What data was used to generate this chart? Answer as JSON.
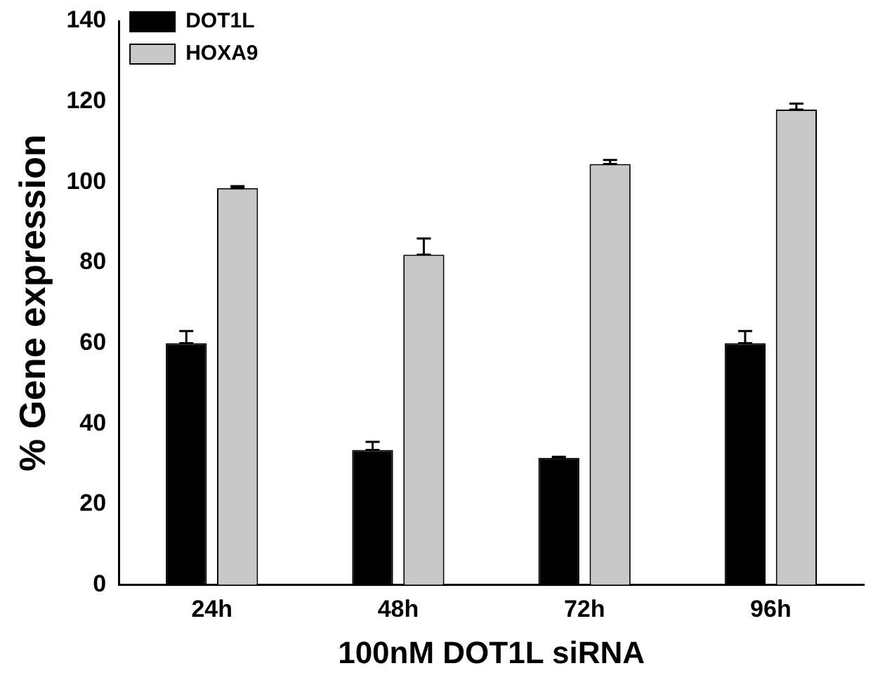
{
  "chart_data": {
    "type": "bar",
    "xlabel": "100nM DOT1L siRNA",
    "ylabel": "% Gene expression",
    "categories": [
      "24h",
      "48h",
      "72h",
      "96h"
    ],
    "series": [
      {
        "name": "DOT1L",
        "color": "#000000",
        "values": [
          60,
          33.5,
          31.5,
          60
        ],
        "errors": [
          [
            60,
            63
          ],
          [
            33.5,
            35.5
          ],
          [
            31.5,
            31.8
          ],
          [
            60,
            63
          ]
        ]
      },
      {
        "name": "HOXA9",
        "color": "#c8c8c8",
        "values": [
          98.5,
          82,
          104.5,
          118
        ],
        "errors": [
          [
            98.5,
            99
          ],
          [
            82,
            86
          ],
          [
            104.5,
            105.5
          ],
          [
            118,
            119.5
          ]
        ]
      }
    ],
    "ylim": [
      0,
      140
    ],
    "yticks": [
      0,
      20,
      40,
      60,
      80,
      100,
      120,
      140
    ],
    "grid": false,
    "legend": "top left"
  }
}
